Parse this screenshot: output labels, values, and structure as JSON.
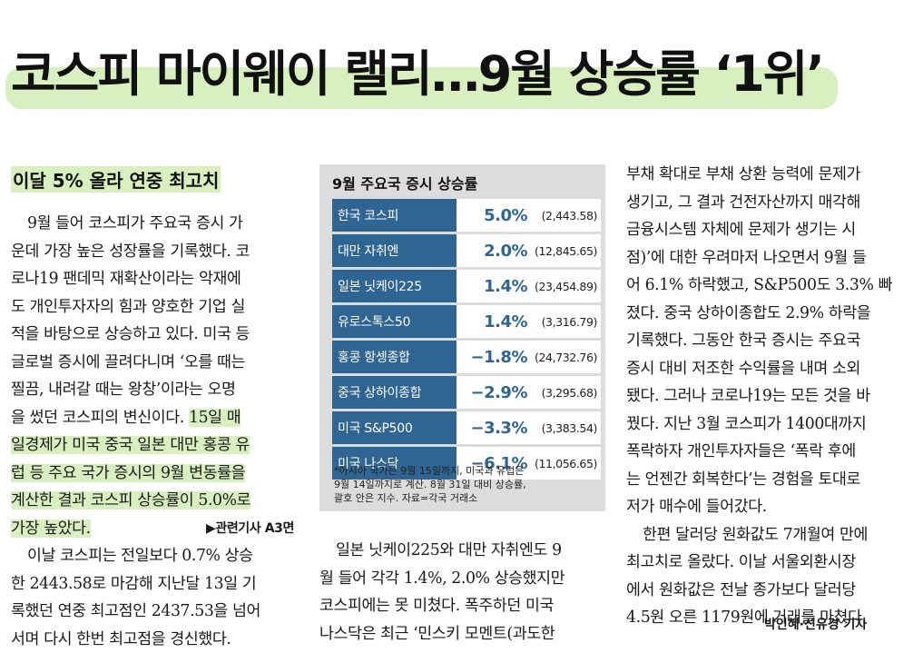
{
  "headline": "코스피 마이웨이 랠리…9월 상승률 ‘1위’",
  "subhead": "이달 5% 올라 연중 최고치",
  "col1": {
    "p1": [
      "9월 들어 코스피가 주요국 증시 가",
      "운데 가장 높은 성장률을 기록했다. 코",
      "로나19 팬데믹 재확산이라는 악재에",
      "도 개인투자자의 힘과 양호한 기업 실",
      "적을 바탕으로 상승하고 있다. 미국 등",
      "글로벌 증시에 끌려다니며 ‘오를 때는"
    ],
    "p1b": [
      "찔끔, 내려갈 때는 왕창’이라는 오명"
    ],
    "line_before_mark": "을 썼던 코스피의 변신이다.",
    "mark1": "15일 매",
    "mark_lines": [
      "일경제가 미국 중국 일본 대만 홍콩 유",
      "럽 등 주요 국가 증시의 9월 변동률을",
      "계산한 결과 코스피 상승률이 5.0%로"
    ],
    "mark_last": "가장 높았다.",
    "ref": "▶관련기사 A3면",
    "p2": [
      "이날 코스피는 전일보다 0.7% 상승",
      "한 2443.58로 마감해 지난달 13일 기",
      "록했던 연중 최고점인 2437.53을 넘어",
      "서며 다시 한번 최고점을 경신했다."
    ]
  },
  "infobox": {
    "title": "9월 주요국 증시 상승률",
    "rows": [
      {
        "name": "한국 코스피",
        "pct": "5.0%",
        "index": "(2,443.58)"
      },
      {
        "name": "대만 자취엔",
        "pct": "2.0%",
        "index": "(12,845.65)"
      },
      {
        "name": "일본 닛케이225",
        "pct": "1.4%",
        "index": "(23,454.89)"
      },
      {
        "name": "유로스톡스50",
        "pct": "1.4%",
        "index": "(3,316.79)"
      },
      {
        "name": "홍콩 항셍종합",
        "pct": "−1.8%",
        "index": "(24,732.76)"
      },
      {
        "name": "중국 상하이종합",
        "pct": "−2.9%",
        "index": "(3,295.68)"
      },
      {
        "name": "미국 S&P500",
        "pct": "−3.3%",
        "index": "(3,383.54)"
      },
      {
        "name": "미국 나스닥",
        "pct": "−6.1%",
        "index": "(11,056.65)"
      }
    ],
    "note": [
      "*아시아 국가는 9월 15일까지, 미국과 유럽은",
      "9월 14일까지로 계산. 8월 31일 대비 상승률,",
      "괄호 안은 지수. 자료=각국 거래소"
    ]
  },
  "col2": {
    "lines": [
      "일본 닛케이225와 대만 자취엔도 9",
      "월 들어 각각 1.4%, 2.0% 상승했지만",
      "코스피에는 못 미쳤다. 폭주하던 미국",
      "나스닥은 최근 ‘민스키 모멘트(과도한"
    ]
  },
  "col3": {
    "p1": [
      "부채 확대로 부채 상환 능력에 문제가",
      "생기고, 그 결과 건전자산까지 매각해",
      "금융시스템 자체에 문제가 생기는 시",
      "점)’에 대한 우려마저 나오면서 9월 들",
      "어 6.1% 하락했고, S&P500도 3.3% 빠",
      "졌다. 중국 상하이종합도 2.9% 하락을",
      "기록했다. 그동안 한국 증시는 주요국",
      "증시 대비 저조한 수익률을 내며 소외",
      "됐다. 그러나 코로나19는 모든 것을 바",
      "꿨다. 지난 3월 코스피가 1400대까지",
      "폭락하자 개인투자자들은 ‘폭락 후에",
      "는 언젠간 회복한다’는 경험을 토대로",
      "저가 매수에 들어갔다."
    ],
    "p2": [
      "한편 달러당 원화값도 7개월여 만에",
      "최고치로 올랐다. 이날 서울외환시장",
      "에서 원화값은 전날 종가보다 달러당",
      "4.5원 오른 1179원에 거래를 마쳤다."
    ]
  },
  "byline": "박인혜·신유경 기자",
  "colors": {
    "highlight": "#d8efbf",
    "box_bg": "#dcdcdc",
    "label_blue": "#2f6592"
  }
}
